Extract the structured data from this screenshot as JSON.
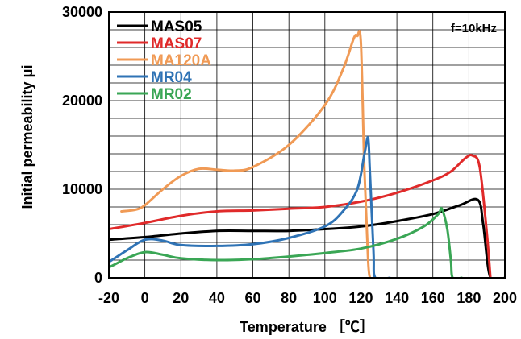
{
  "chart_data": {
    "type": "line",
    "xlabel": "Temperature ［℃］",
    "ylabel": "Initial permeability μi",
    "xlim": [
      -20,
      200
    ],
    "ylim": [
      0,
      30000
    ],
    "x_ticks": [
      -20,
      0,
      20,
      40,
      60,
      80,
      100,
      120,
      140,
      160,
      180,
      200
    ],
    "y_ticks": [
      0,
      10000,
      20000,
      30000
    ],
    "grid": true,
    "legend_position": "top-left",
    "annotation": "f=10kHz",
    "series": [
      {
        "name": "MAS05",
        "color": "#000000",
        "points": [
          [
            -28,
            4100
          ],
          [
            -20,
            4300
          ],
          [
            0,
            4600
          ],
          [
            20,
            5000
          ],
          [
            40,
            5300
          ],
          [
            60,
            5300
          ],
          [
            80,
            5300
          ],
          [
            100,
            5500
          ],
          [
            120,
            5800
          ],
          [
            140,
            6400
          ],
          [
            160,
            7200
          ],
          [
            175,
            8200
          ],
          [
            185,
            8800
          ],
          [
            188,
            6000
          ],
          [
            192,
            0
          ],
          [
            200,
            0
          ]
        ]
      },
      {
        "name": "MAS07",
        "color": "#e02a2a",
        "points": [
          [
            -28,
            5200
          ],
          [
            -20,
            5500
          ],
          [
            0,
            6200
          ],
          [
            20,
            7000
          ],
          [
            40,
            7500
          ],
          [
            60,
            7600
          ],
          [
            80,
            7800
          ],
          [
            100,
            8000
          ],
          [
            120,
            8600
          ],
          [
            140,
            9600
          ],
          [
            160,
            11000
          ],
          [
            170,
            12000
          ],
          [
            178,
            13500
          ],
          [
            182,
            13800
          ],
          [
            186,
            12500
          ],
          [
            190,
            5000
          ],
          [
            192,
            0
          ]
        ]
      },
      {
        "name": "MA120A",
        "color": "#f09a55",
        "points": [
          [
            -13,
            7500
          ],
          [
            -5,
            7700
          ],
          [
            0,
            8200
          ],
          [
            10,
            10000
          ],
          [
            20,
            11500
          ],
          [
            30,
            12300
          ],
          [
            40,
            12200
          ],
          [
            50,
            12100
          ],
          [
            60,
            12500
          ],
          [
            80,
            15000
          ],
          [
            100,
            19500
          ],
          [
            110,
            23500
          ],
          [
            116,
            27000
          ],
          [
            118,
            27300
          ],
          [
            120,
            26500
          ],
          [
            122,
            12000
          ],
          [
            124,
            2000
          ],
          [
            125,
            0
          ]
        ]
      },
      {
        "name": "MR04",
        "color": "#2f73b5",
        "points": [
          [
            -28,
            900
          ],
          [
            -20,
            1800
          ],
          [
            -10,
            3100
          ],
          [
            0,
            4300
          ],
          [
            10,
            4200
          ],
          [
            20,
            3700
          ],
          [
            40,
            3600
          ],
          [
            60,
            3800
          ],
          [
            80,
            4500
          ],
          [
            100,
            5800
          ],
          [
            110,
            7500
          ],
          [
            118,
            10000
          ],
          [
            122,
            14000
          ],
          [
            124,
            15800
          ],
          [
            125,
            12000
          ],
          [
            127,
            3000
          ],
          [
            128,
            0
          ],
          [
            136,
            0
          ]
        ]
      },
      {
        "name": "MR02",
        "color": "#3aa655",
        "points": [
          [
            -28,
            700
          ],
          [
            -20,
            1200
          ],
          [
            -10,
            2200
          ],
          [
            0,
            2900
          ],
          [
            10,
            2600
          ],
          [
            20,
            2200
          ],
          [
            40,
            2000
          ],
          [
            60,
            2100
          ],
          [
            80,
            2400
          ],
          [
            100,
            2800
          ],
          [
            120,
            3300
          ],
          [
            140,
            4400
          ],
          [
            155,
            5800
          ],
          [
            163,
            7200
          ],
          [
            165,
            7800
          ],
          [
            168,
            5500
          ],
          [
            170,
            2000
          ],
          [
            171,
            0
          ],
          [
            176,
            0
          ]
        ]
      }
    ]
  }
}
